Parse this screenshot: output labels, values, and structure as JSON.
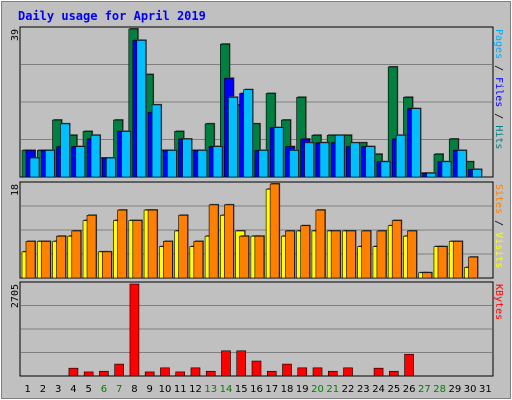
{
  "chart_data": {
    "type": "bar",
    "title": "Daily usage for April 2019",
    "days": [
      "1",
      "2",
      "3",
      "4",
      "5",
      "6",
      "7",
      "8",
      "9",
      "10",
      "11",
      "12",
      "13",
      "14",
      "15",
      "16",
      "17",
      "18",
      "19",
      "20",
      "21",
      "22",
      "23",
      "24",
      "25",
      "26",
      "27",
      "28",
      "29",
      "30",
      "31"
    ],
    "weekend_days": [
      "6",
      "7",
      "13",
      "14",
      "20",
      "21",
      "27",
      "28"
    ],
    "panels": [
      {
        "id": "top",
        "max_label": "39",
        "max": 39,
        "side_label": [
          {
            "text": "Pages",
            "color": "#00aaff"
          },
          {
            "text": " / ",
            "color": "#000000"
          },
          {
            "text": "Files",
            "color": "#0000ff"
          },
          {
            "text": " / ",
            "color": "#000000"
          },
          {
            "text": "Hits",
            "color": "#008080"
          }
        ],
        "series": [
          {
            "name": "Hits",
            "color": "#008040",
            "values": [
              7,
              7,
              15,
              11,
              12,
              5,
              15,
              39,
              27,
              7,
              12,
              7,
              14,
              35,
              19,
              14,
              22,
              15,
              21,
              11,
              11,
              11,
              9,
              6,
              29,
              21,
              1,
              6,
              10,
              4,
              0
            ]
          },
          {
            "name": "Files",
            "color": "#0000ff",
            "values": [
              7,
              7,
              8,
              8,
              10,
              5,
              12,
              36,
              17,
              7,
              10,
              7,
              8,
              26,
              22,
              7,
              13,
              8,
              10,
              9,
              9,
              8,
              8,
              4,
              10,
              18,
              1,
              4,
              7,
              2,
              0
            ]
          },
          {
            "name": "Pages",
            "color": "#00bfff",
            "values": [
              5,
              7,
              14,
              8,
              11,
              5,
              12,
              36,
              19,
              7,
              10,
              7,
              8,
              21,
              23,
              7,
              13,
              7,
              9,
              9,
              11,
              9,
              8,
              4,
              11,
              18,
              1,
              4,
              7,
              2,
              0
            ]
          }
        ]
      },
      {
        "id": "mid",
        "max_label": "18",
        "max": 18,
        "side_label": [
          {
            "text": "Sites",
            "color": "#ff8000"
          },
          {
            "text": " / ",
            "color": "#000000"
          },
          {
            "text": "Visits",
            "color": "#ffff00"
          }
        ],
        "series": [
          {
            "name": "Visits",
            "color": "#ffff00",
            "values": [
              5,
              7,
              7,
              8,
              11,
              5,
              11,
              11,
              13,
              6,
              9,
              6,
              8,
              12,
              9,
              8,
              17,
              8,
              9,
              9,
              9,
              9,
              6,
              6,
              10,
              8,
              1,
              6,
              7,
              2,
              0
            ]
          },
          {
            "name": "Sites",
            "color": "#ff8000",
            "values": [
              7,
              7,
              8,
              9,
              12,
              5,
              13,
              11,
              13,
              7,
              12,
              7,
              14,
              14,
              8,
              8,
              18,
              9,
              10,
              13,
              9,
              9,
              9,
              9,
              11,
              9,
              1,
              6,
              7,
              4,
              0
            ]
          }
        ]
      },
      {
        "id": "bot",
        "max_label": "2705",
        "max": 2705,
        "side_label": [
          {
            "text": "KBytes",
            "color": "#ff0000"
          }
        ],
        "series": [
          {
            "name": "KBytes",
            "color": "#ff0000",
            "values": [
              0,
              0,
              0,
              230,
              120,
              140,
              350,
              2705,
              120,
              240,
              120,
              240,
              140,
              740,
              740,
              440,
              140,
              350,
              240,
              240,
              140,
              240,
              0,
              230,
              140,
              640,
              0,
              0,
              0,
              0,
              0
            ]
          }
        ]
      }
    ]
  }
}
